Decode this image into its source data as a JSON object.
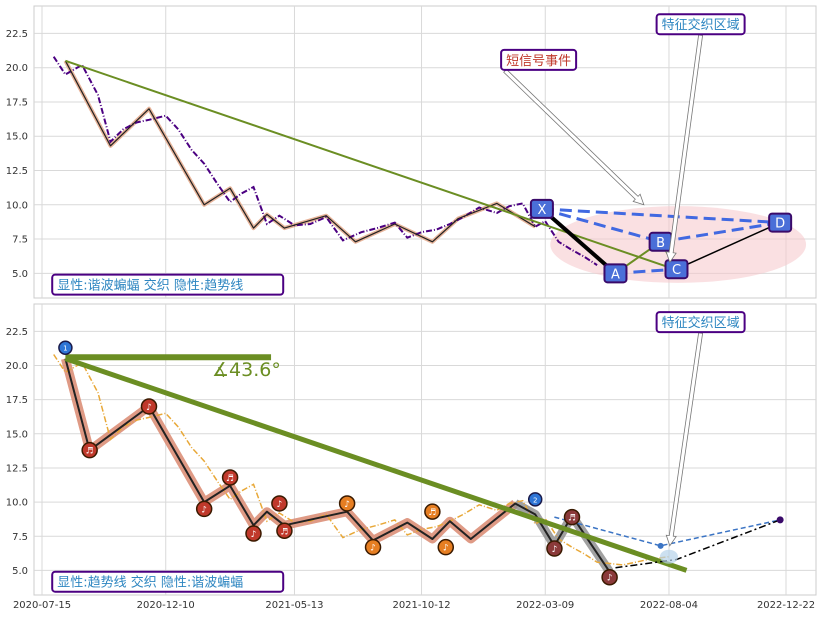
{
  "chart_data": [
    {
      "type": "line",
      "panel": "top",
      "ylim": [
        3.2,
        24.5
      ],
      "yticks": [
        "5.0",
        "7.5",
        "10.0",
        "12.5",
        "15.0",
        "17.5",
        "20.0",
        "22.5"
      ],
      "grid": true,
      "price_series": {
        "name": "",
        "color": "#4b0082",
        "style": "dashdot",
        "x": [
          "2020-07-29",
          "2020-08-12",
          "2020-09-01",
          "2020-09-20",
          "2020-10-05",
          "2020-10-20",
          "2020-11-05",
          "2020-11-20",
          "2020-12-10",
          "2020-12-25",
          "2021-01-10",
          "2021-01-25",
          "2021-02-10",
          "2021-02-25",
          "2021-03-10",
          "2021-03-25",
          "2021-04-10",
          "2021-04-25",
          "2021-05-13",
          "2021-06-01",
          "2021-06-20",
          "2021-07-10",
          "2021-08-01",
          "2021-08-20",
          "2021-09-10",
          "2021-09-25",
          "2021-10-12",
          "2021-10-30",
          "2021-11-15",
          "2021-12-01",
          "2021-12-20",
          "2022-01-10",
          "2022-01-25",
          "2022-02-10",
          "2022-02-25",
          "2022-03-09",
          "2022-03-25",
          "2022-04-10",
          "2022-04-25",
          "2022-05-10"
        ],
        "y": [
          20.8,
          19.5,
          20.2,
          18.0,
          14.6,
          15.5,
          16.0,
          16.2,
          16.5,
          15.5,
          14.0,
          13.0,
          11.5,
          10.2,
          10.8,
          11.3,
          8.6,
          9.2,
          8.5,
          8.6,
          9.1,
          7.4,
          8.0,
          8.3,
          8.7,
          7.6,
          8.0,
          8.2,
          8.6,
          9.1,
          9.8,
          9.4,
          9.9,
          10.1,
          8.4,
          8.8,
          7.3,
          6.7,
          6.2,
          5.6
        ]
      },
      "zigzag": {
        "x": [
          "2020-08-12",
          "2020-10-05",
          "2020-11-20",
          "2021-01-25",
          "2021-02-25",
          "2021-03-25",
          "2021-04-10",
          "2021-05-01",
          "2021-06-20",
          "2021-07-25",
          "2021-09-10",
          "2021-10-25",
          "2021-11-25",
          "2022-01-10",
          "2022-02-25"
        ],
        "y": [
          20.5,
          14.3,
          17.0,
          10.0,
          11.2,
          8.3,
          9.3,
          8.3,
          9.2,
          7.3,
          8.6,
          7.3,
          9.0,
          10.1,
          8.4
        ]
      },
      "trend_line": {
        "color": "#6b8e23",
        "x": [
          "2020-08-12",
          "2022-08-25"
        ],
        "y": [
          20.5,
          5.0
        ]
      },
      "pattern": {
        "points": [
          {
            "label": "X",
            "x": "2022-03-05",
            "y": 9.7
          },
          {
            "label": "A",
            "x": "2022-06-01",
            "y": 5.0
          },
          {
            "label": "B",
            "x": "2022-07-25",
            "y": 7.3
          },
          {
            "label": "C",
            "x": "2022-08-13",
            "y": 5.3
          },
          {
            "label": "D",
            "x": "2022-12-15",
            "y": 8.7
          }
        ],
        "dashed_color": "#4169e1"
      },
      "zone_ellipse": {
        "x": [
          "2022-03-15",
          "2023-01-15"
        ],
        "y": [
          4.3,
          9.9
        ],
        "color": "#f5c6cb"
      },
      "annotations": [
        {
          "text": "短信号事件",
          "color": "#c0392b",
          "x": "2022-01-20",
          "y": 20.5,
          "arrow_to": {
            "x": "2022-07-05",
            "y": 10.0
          }
        },
        {
          "text": "特征交织区域",
          "color": "#2e86c1",
          "x": "2022-07-25",
          "y": 23.1,
          "arrow_to": {
            "x": "2022-08-05",
            "y": 5.8
          }
        },
        {
          "text": "显性:谐波蝙蝠 交织 隐性:趋势线",
          "color": "#2e86c1",
          "x": "2020-08-01",
          "y": 4.1
        }
      ]
    },
    {
      "type": "line",
      "panel": "bottom",
      "ylim": [
        3.2,
        24.5
      ],
      "yticks": [
        "5.0",
        "7.5",
        "10.0",
        "12.5",
        "15.0",
        "17.5",
        "20.0",
        "22.5"
      ],
      "xticks": [
        "2020-07-15",
        "2020-12-10",
        "2021-05-13",
        "2021-10-12",
        "2022-03-09",
        "2022-08-04",
        "2022-12-22"
      ],
      "grid": true,
      "price_series": {
        "name": "",
        "color": "#e8a838",
        "style": "dashdot",
        "x": [
          "2020-07-29",
          "2020-08-12",
          "2020-09-01",
          "2020-09-20",
          "2020-10-05",
          "2020-10-20",
          "2020-11-05",
          "2020-11-20",
          "2020-12-10",
          "2020-12-25",
          "2021-01-10",
          "2021-01-25",
          "2021-02-10",
          "2021-02-25",
          "2021-03-10",
          "2021-03-25",
          "2021-04-10",
          "2021-04-25",
          "2021-05-13",
          "2021-06-01",
          "2021-06-20",
          "2021-07-10",
          "2021-08-01",
          "2021-08-20",
          "2021-09-10",
          "2021-09-25",
          "2021-10-12",
          "2021-10-30",
          "2021-11-15",
          "2021-12-01",
          "2021-12-20",
          "2022-01-10",
          "2022-01-25",
          "2022-02-10",
          "2022-02-25",
          "2022-03-09",
          "2022-03-25",
          "2022-04-10",
          "2022-04-25",
          "2022-05-10",
          "2022-06-10",
          "2022-07-10",
          "2022-08-04"
        ],
        "y": [
          20.8,
          19.5,
          20.2,
          18.0,
          14.6,
          15.5,
          16.0,
          16.2,
          16.5,
          15.5,
          14.0,
          13.0,
          11.5,
          10.2,
          10.8,
          11.3,
          8.6,
          9.2,
          8.5,
          8.6,
          9.1,
          7.4,
          8.0,
          8.3,
          8.7,
          7.6,
          8.0,
          8.2,
          8.6,
          9.1,
          9.8,
          9.4,
          9.9,
          10.1,
          8.4,
          8.8,
          7.3,
          6.7,
          6.2,
          5.6,
          5.4,
          5.8,
          6.0
        ]
      },
      "zigzag": {
        "x": [
          "2020-08-12",
          "2020-09-10",
          "2020-11-20",
          "2021-01-25",
          "2021-02-25",
          "2021-03-25",
          "2021-04-10",
          "2021-05-01",
          "2021-07-15",
          "2021-08-15",
          "2021-09-25",
          "2021-10-25",
          "2021-11-15",
          "2021-12-10",
          "2022-02-01",
          "2022-02-25",
          "2022-03-20",
          "2022-04-10",
          "2022-05-25"
        ],
        "y": [
          20.5,
          13.8,
          17.0,
          10.0,
          11.2,
          8.3,
          9.3,
          8.3,
          9.3,
          7.2,
          8.5,
          7.3,
          8.6,
          7.3,
          9.9,
          9.1,
          6.8,
          9.0,
          4.9
        ],
        "markers": [
          {
            "x": "2020-09-10",
            "y": 13.8,
            "color": "#c0392b"
          },
          {
            "x": "2020-11-20",
            "y": 17.0,
            "color": "#c0392b"
          },
          {
            "x": "2021-01-25",
            "y": 9.5,
            "color": "#c0392b"
          },
          {
            "x": "2021-02-25",
            "y": 11.8,
            "color": "#c0392b"
          },
          {
            "x": "2021-03-25",
            "y": 7.7,
            "color": "#c0392b"
          },
          {
            "x": "2021-04-25",
            "y": 9.9,
            "color": "#c0392b"
          },
          {
            "x": "2021-05-01",
            "y": 7.9,
            "color": "#c0392b"
          },
          {
            "x": "2021-07-15",
            "y": 9.9,
            "color": "#e67e22"
          },
          {
            "x": "2021-08-15",
            "y": 6.7,
            "color": "#e67e22"
          },
          {
            "x": "2021-10-25",
            "y": 9.3,
            "color": "#e67e22"
          },
          {
            "x": "2021-11-10",
            "y": 6.7,
            "color": "#e67e22"
          },
          {
            "x": "2022-03-20",
            "y": 6.6,
            "color": "#8b3a3a"
          },
          {
            "x": "2022-04-10",
            "y": 8.9,
            "color": "#8b3a3a"
          },
          {
            "x": "2022-05-25",
            "y": 4.5,
            "color": "#8b3a3a"
          }
        ],
        "label_markers": [
          {
            "label": "1",
            "x": "2020-08-12",
            "y": 21.3
          },
          {
            "label": "2",
            "x": "2022-02-25",
            "y": 10.2
          }
        ]
      },
      "trend_line": {
        "color": "#6b8e23",
        "x": [
          "2020-08-12",
          "2022-08-25"
        ],
        "y": [
          20.5,
          5.0
        ]
      },
      "horizontal_line": {
        "x": [
          "2020-08-12",
          "2021-04-15"
        ],
        "y": 20.6
      },
      "angle_label": "∡43.6°",
      "projection": {
        "dashed": {
          "x": [
            "2022-03-20",
            "2022-07-25",
            "2022-12-15"
          ],
          "y": [
            8.9,
            6.8,
            8.7
          ]
        },
        "dashdot": {
          "x": [
            "2022-06-01",
            "2022-08-13",
            "2022-12-15"
          ],
          "y": [
            5.2,
            5.8,
            8.7
          ]
        }
      },
      "annotations": [
        {
          "text": "特征交织区域",
          "color": "#2e86c1",
          "x": "2022-07-25",
          "y": 23.1,
          "arrow_to": {
            "x": "2022-08-05",
            "y": 6.8
          }
        },
        {
          "text": "显性:趋势线 交织 隐性:谐波蝙蝠",
          "color": "#2e86c1",
          "x": "2020-08-01",
          "y": 4.1
        }
      ]
    }
  ]
}
